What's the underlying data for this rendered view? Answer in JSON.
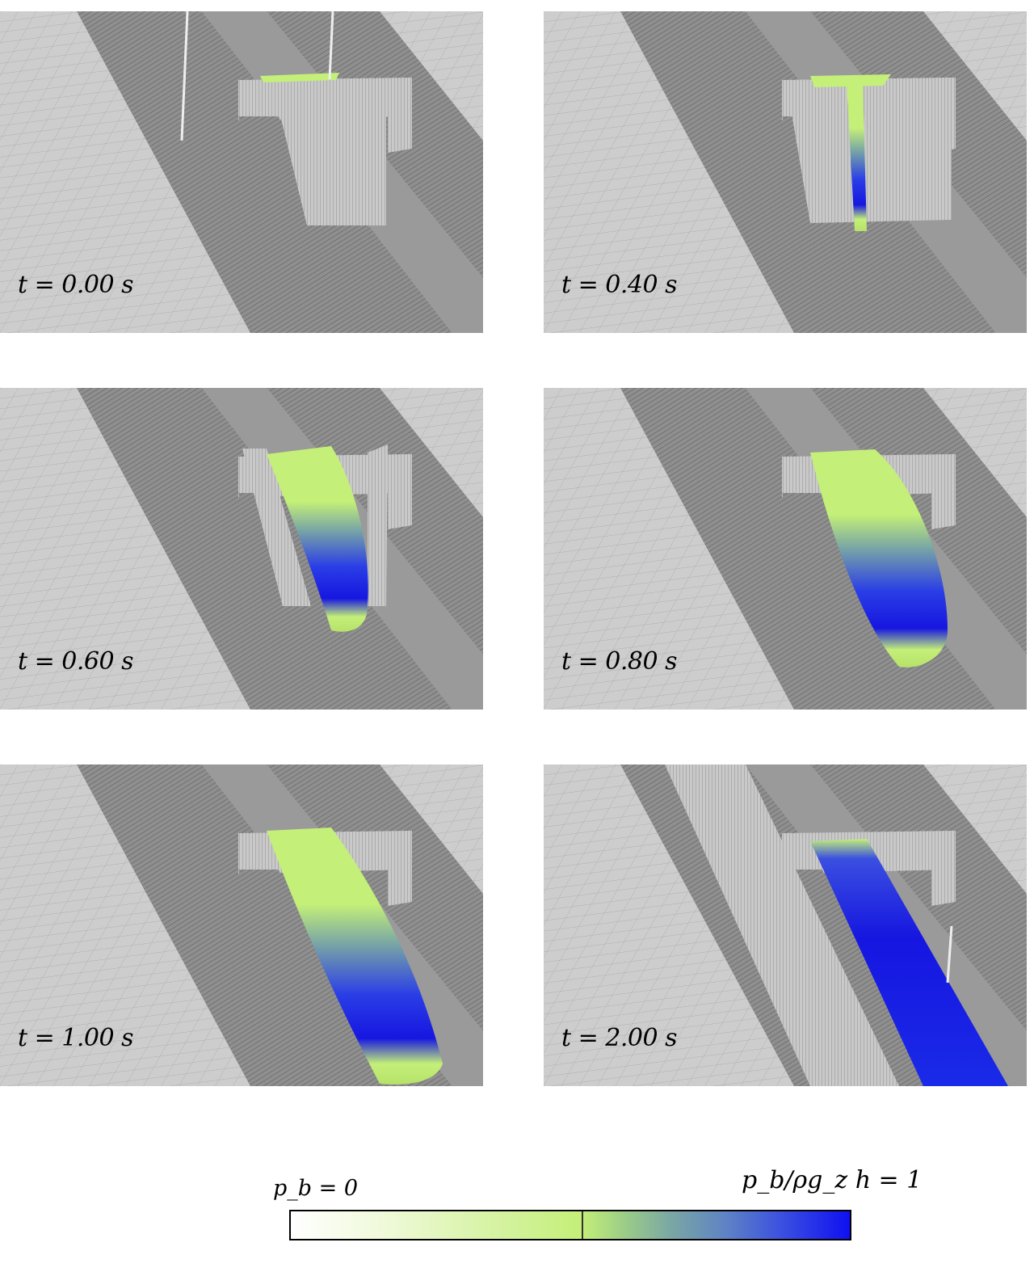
{
  "panels": [
    {
      "time_label": "t = 0.00 s",
      "state": "initial"
    },
    {
      "time_label": "t = 0.40 s",
      "state": "release"
    },
    {
      "time_label": "t = 0.60 s",
      "state": "collapse"
    },
    {
      "time_label": "t = 0.80 s",
      "state": "spread"
    },
    {
      "time_label": "t = 1.00 s",
      "state": "flow"
    },
    {
      "time_label": "t = 2.00 s",
      "state": "runout"
    }
  ],
  "legend": {
    "left_label": "p_b = 0",
    "right_label": "p_b/ρg_z h = 1",
    "colors": {
      "low": "#ffffff",
      "mid": "#c4ef78",
      "high": "#1010f0"
    }
  }
}
